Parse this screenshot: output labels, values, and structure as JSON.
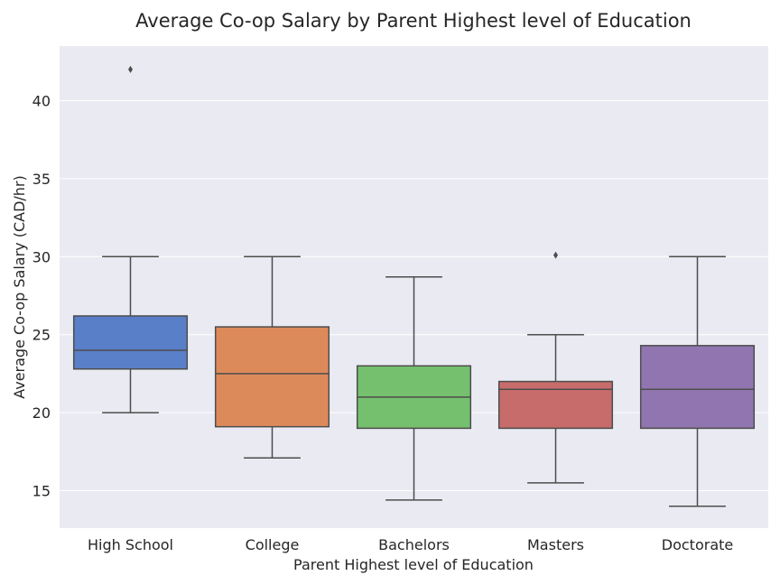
{
  "chart_data": {
    "type": "box",
    "title": "Average Co-op Salary by Parent Highest level of Education",
    "xlabel": "Parent Highest level of Education",
    "ylabel": "Average Co-op Salary (CAD/hr)",
    "ylim": [
      12.6,
      43.5
    ],
    "yticks": [
      15,
      20,
      25,
      30,
      35,
      40
    ],
    "grid": true,
    "categories": [
      "High School",
      "College",
      "Bachelors",
      "Masters",
      "Doctorate"
    ],
    "boxes": [
      {
        "category": "High School",
        "whisker_low": 20,
        "q1": 22.8,
        "median": 24,
        "q3": 26.2,
        "whisker_high": 30,
        "outliers": [
          42
        ],
        "color": "#5a7fc9"
      },
      {
        "category": "College",
        "whisker_low": 17.1,
        "q1": 19.1,
        "median": 22.5,
        "q3": 25.5,
        "whisker_high": 30,
        "outliers": [],
        "color": "#dd8a5b"
      },
      {
        "category": "Bachelors",
        "whisker_low": 14.4,
        "q1": 19,
        "median": 21,
        "q3": 23,
        "whisker_high": 28.7,
        "outliers": [],
        "color": "#74c06e"
      },
      {
        "category": "Masters",
        "whisker_low": 15.5,
        "q1": 19,
        "median": 21.5,
        "q3": 22,
        "whisker_high": 25,
        "outliers": [
          30.1
        ],
        "color": "#c76c6b"
      },
      {
        "category": "Doctorate",
        "whisker_low": 14,
        "q1": 19,
        "median": 21.5,
        "q3": 24.3,
        "whisker_high": 30,
        "outliers": [],
        "color": "#9175b0"
      }
    ]
  }
}
